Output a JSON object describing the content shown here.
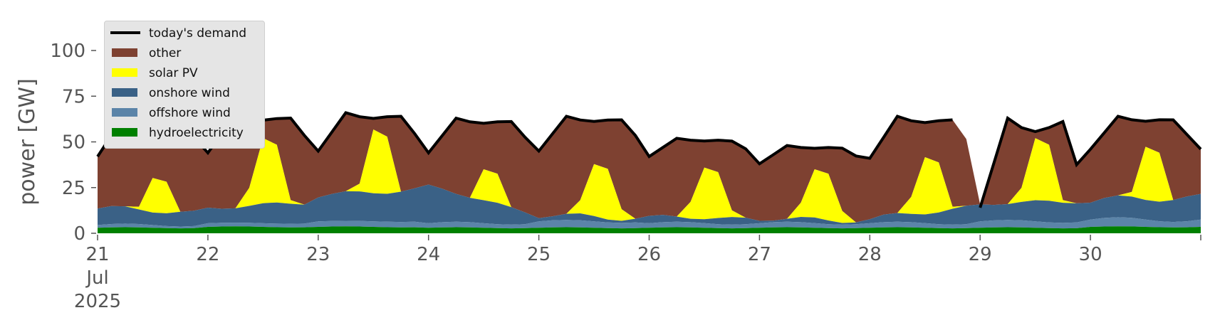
{
  "chart_data": {
    "type": "area",
    "ylabel": "power [GW]",
    "ylim": [
      0,
      115
    ],
    "yticks": [
      0,
      25,
      50,
      75,
      100
    ],
    "xlim_days": [
      "2025-07-21",
      "2025-07-31"
    ],
    "xtick_labels": [
      "21\nJul\n2025",
      "22",
      "23",
      "24",
      "25",
      "26",
      "27",
      "28",
      "29",
      "30"
    ],
    "legend_position": "upper-left",
    "grid": false,
    "days": [
      "2025-07-21",
      "2025-07-22",
      "2025-07-23",
      "2025-07-24",
      "2025-07-25",
      "2025-07-26",
      "2025-07-27",
      "2025-07-28",
      "2025-07-29",
      "2025-07-30"
    ],
    "series": [
      {
        "name": "hydroelectricity",
        "color": "#008000",
        "daily": [
          3,
          3.5,
          3.5,
          3,
          3,
          3,
          3,
          3,
          3,
          3.5
        ]
      },
      {
        "name": "offshore wind",
        "color": "#5b84a8",
        "daily_min": [
          1,
          2,
          3,
          2,
          3,
          2,
          2,
          2,
          3,
          3
        ],
        "daily_max": [
          2,
          2,
          3,
          3,
          4,
          3,
          3,
          3,
          4,
          5
        ]
      },
      {
        "name": "onshore wind",
        "color": "#3a6186",
        "daily_start": [
          9,
          8,
          14,
          20,
          3,
          3,
          2,
          2,
          9,
          10
        ],
        "daily_end": [
          7,
          12,
          18,
          5,
          2,
          3,
          2,
          10,
          12,
          13
        ]
      },
      {
        "name": "solar PV",
        "color": "#ffff00",
        "daily_peak_total": [
          32,
          55,
          60,
          37,
          40,
          38,
          37,
          44,
          55,
          50
        ]
      },
      {
        "name": "other",
        "color": "#7e4131"
      },
      {
        "name": "today's demand",
        "color": "#000000",
        "daily_morning_peak": [
          65,
          65,
          66,
          63,
          64,
          52,
          48,
          64,
          63,
          64
        ],
        "daily_night_min": [
          42,
          44,
          45,
          44,
          45,
          42,
          38,
          41,
          14,
          46
        ],
        "gap": [
          "2025-07-28T18:00",
          "2025-07-29T00:00"
        ]
      }
    ]
  }
}
